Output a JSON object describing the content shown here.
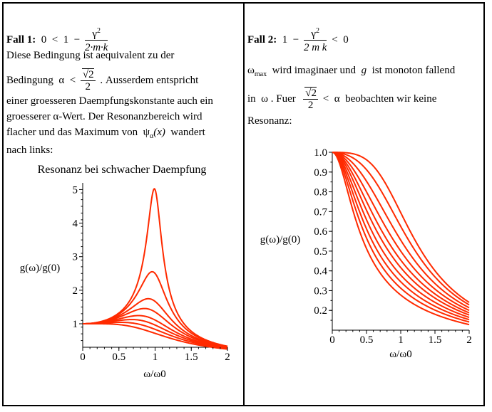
{
  "left": {
    "heading": "Fall 1:",
    "condition": {
      "lhs": "0",
      "lt": "<",
      "one": "1",
      "minus": "−",
      "num": "γ",
      "num_exp": "2",
      "den": "2·m·k"
    },
    "line1": "Diese Bedingung ist aequivalent zu der",
    "line2_pre": "Bedingung",
    "line2_alpha": "α",
    "line2_lt": "<",
    "line2_sqrt": "√2",
    "line2_den": "2",
    "line2_post": ". Ausserdem entspricht",
    "line3": "einer groesseren Daempfungskonstante auch ein",
    "line4": "groesserer  α-Wert. Der Resonanzbereich wird",
    "line5_pre": "flacher und das Maximum von",
    "line5_psi": "ψ",
    "line5_sub": "α",
    "line5_arg": "(x)",
    "line5_post": "wandert",
    "line6": "nach links:"
  },
  "right": {
    "heading": "Fall 2:",
    "condition": {
      "one": "1",
      "minus": "−",
      "num": "γ",
      "num_exp": "2",
      "den": "2 m k",
      "lt": "<",
      "zero": "0"
    },
    "line1_omega": "ω",
    "line1_sub": "max",
    "line1_mid": "wird imaginaer und",
    "line1_g": "g",
    "line1_post": "ist monoton fallend",
    "line2_pre": "in",
    "line2_omega": "ω",
    "line2_mid": ". Fuer",
    "line2_sqrt": "√2",
    "line2_den": "2",
    "line2_lt": "<",
    "line2_alpha": "α",
    "line2_post": "beobachten wir keine",
    "line3": "Resonanz:"
  },
  "chart_data": [
    {
      "type": "line",
      "title": "Resonanz bei schwacher Daempfung",
      "xlabel": "ω/ω0",
      "ylabel": "g(ω)/g(0)",
      "xlim": [
        0,
        2
      ],
      "ylim": [
        0.3,
        5.2
      ],
      "x_ticks": [
        "0",
        "0.5",
        "1",
        "1.5",
        "2"
      ],
      "y_ticks": [
        "1",
        "2",
        "3",
        "4",
        "5"
      ],
      "function": "g(x)/g(0) = 1/sqrt((1-x^2)^2 + (2*alpha*x)^2)",
      "series_alpha": [
        0.1,
        0.2,
        0.3,
        0.37,
        0.45,
        0.52,
        0.6,
        0.7
      ],
      "color": "#ff2a00",
      "grid": false
    },
    {
      "type": "line",
      "xlabel": "ω/ω0",
      "ylabel": "g(ω)/g(0)",
      "xlim": [
        0,
        2
      ],
      "ylim": [
        0.1,
        1.0
      ],
      "x_ticks": [
        "0",
        "0.5",
        "1",
        "1.5",
        "2"
      ],
      "y_ticks": [
        "0.2",
        "0.3",
        "0.4",
        "0.5",
        "0.6",
        "0.7",
        "0.8",
        "0.9",
        "1.0"
      ],
      "function": "g(x)/g(0) = 1/sqrt((1-x^2)^2 + (2*alpha*x)^2)",
      "series_alpha": [
        0.72,
        0.8,
        0.9,
        1.0,
        1.1,
        1.2,
        1.32,
        1.45,
        1.6,
        1.8
      ],
      "color": "#ff2a00",
      "grid": false
    }
  ]
}
